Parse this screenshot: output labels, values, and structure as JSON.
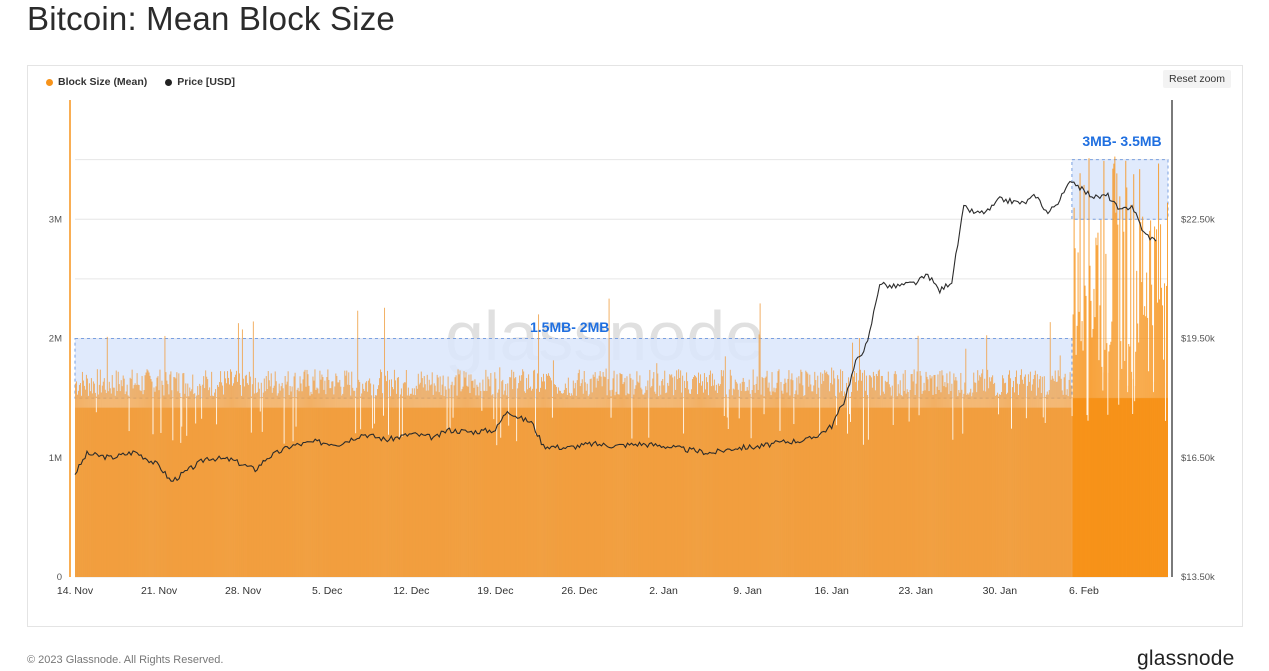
{
  "page": {
    "title": "Bitcoin: Mean Block Size",
    "reset_zoom": "Reset zoom",
    "footer": "© 2023 Glassnode. All Rights Reserved.",
    "brand": "glassnode",
    "watermark": "glassnode"
  },
  "chart_data": {
    "type": "bar",
    "legend": [
      {
        "name": "Block Size (Mean)",
        "color": "#f7931a"
      },
      {
        "name": "Price [USD]",
        "color": "#222222"
      }
    ],
    "x_tick_labels": [
      "14. Nov",
      "21. Nov",
      "28. Nov",
      "5. Dec",
      "12. Dec",
      "19. Dec",
      "26. Dec",
      "2. Jan",
      "9. Jan",
      "16. Jan",
      "23. Jan",
      "30. Jan",
      "6. Feb"
    ],
    "y_left": {
      "ticks": [
        "0",
        "1M",
        "2M",
        "3M"
      ],
      "range": [
        0,
        4000000
      ]
    },
    "y_right": {
      "ticks": [
        "$13.50k",
        "$16.50k",
        "$19.50k",
        "$22.50k"
      ],
      "range": [
        13500,
        25500
      ]
    },
    "series": [
      {
        "name": "Block Size (Mean)",
        "axis": "left",
        "baseline_by_period": [
          {
            "from_day": 0,
            "to_day": 83,
            "typical": 1500000,
            "spike_max": 2100000
          },
          {
            "from_day": 83,
            "to_day": 91,
            "typical": 2800000,
            "spike_max": 3550000
          }
        ]
      },
      {
        "name": "Price [USD]",
        "axis": "right",
        "points": [
          [
            0,
            16100
          ],
          [
            1,
            16600
          ],
          [
            3,
            16500
          ],
          [
            5,
            16650
          ],
          [
            7,
            16300
          ],
          [
            8,
            15900
          ],
          [
            9,
            16100
          ],
          [
            11,
            16500
          ],
          [
            13,
            16450
          ],
          [
            15,
            16200
          ],
          [
            16,
            16500
          ],
          [
            18,
            16800
          ],
          [
            20,
            16900
          ],
          [
            22,
            16850
          ],
          [
            24,
            17100
          ],
          [
            26,
            16950
          ],
          [
            28,
            17100
          ],
          [
            30,
            17000
          ],
          [
            31,
            17200
          ],
          [
            33,
            17150
          ],
          [
            35,
            17200
          ],
          [
            36,
            17700
          ],
          [
            37,
            17500
          ],
          [
            38,
            17400
          ],
          [
            39,
            16800
          ],
          [
            41,
            16750
          ],
          [
            43,
            16850
          ],
          [
            45,
            16800
          ],
          [
            47,
            16850
          ],
          [
            49,
            16800
          ],
          [
            51,
            16700
          ],
          [
            53,
            16620
          ],
          [
            55,
            16750
          ],
          [
            57,
            16780
          ],
          [
            59,
            16900
          ],
          [
            61,
            16950
          ],
          [
            62,
            17100
          ],
          [
            63,
            17300
          ],
          [
            64,
            17900
          ],
          [
            65,
            18900
          ],
          [
            66,
            19400
          ],
          [
            67,
            20900
          ],
          [
            68,
            20800
          ],
          [
            70,
            20900
          ],
          [
            71,
            21100
          ],
          [
            72,
            20700
          ],
          [
            73,
            20950
          ],
          [
            74,
            22800
          ],
          [
            75,
            22650
          ],
          [
            76,
            22700
          ],
          [
            77,
            23000
          ],
          [
            78,
            22950
          ],
          [
            79,
            22900
          ],
          [
            80,
            23100
          ],
          [
            81,
            22650
          ],
          [
            82,
            23000
          ],
          [
            83,
            23500
          ],
          [
            84,
            23200
          ],
          [
            85,
            23050
          ],
          [
            86,
            23100
          ],
          [
            87,
            22700
          ],
          [
            88,
            22850
          ],
          [
            89,
            22150
          ],
          [
            90,
            21950
          ]
        ]
      }
    ],
    "annotations": [
      {
        "label": "1.5MB- 2MB",
        "from_day": 0,
        "to_day": 83,
        "y_from": 1500000,
        "y_to": 2000000
      },
      {
        "label": "3MB- 3.5MB",
        "from_day": 83,
        "to_day": 91,
        "y_from": 3000000,
        "y_to": 3500000
      }
    ]
  }
}
